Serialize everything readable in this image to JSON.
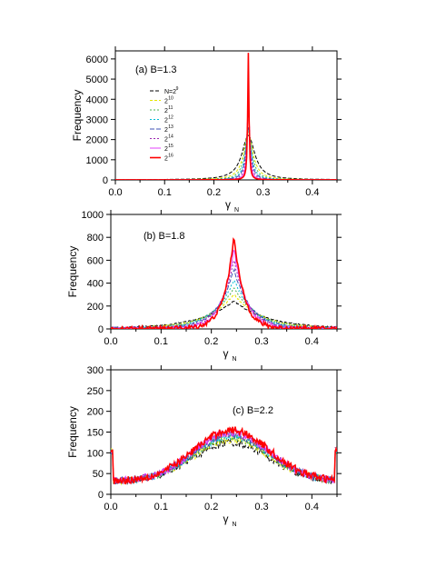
{
  "chart_data": [
    {
      "type": "line",
      "panel_label": "(a) B=1.3",
      "xlabel": "γ",
      "xlabel_sub": "N",
      "ylabel": "Frequency",
      "xlim": [
        0.0,
        0.45
      ],
      "ylim": [
        0,
        6400
      ],
      "xticks": [
        "0.0",
        "0.1",
        "0.2",
        "0.3",
        "0.4"
      ],
      "yticks": [
        "0",
        "1000",
        "2000",
        "3000",
        "4000",
        "5000",
        "6000"
      ],
      "legend_position": "top-left",
      "series": [
        {
          "name": "N=2^9",
          "color": "#000000",
          "dash": "4,2",
          "peak_x": 0.27,
          "peak_y": 2200,
          "width": 0.025
        },
        {
          "name": "2^10",
          "color": "#e6e600",
          "dash": "3,2",
          "peak_x": 0.27,
          "peak_y": 2300,
          "width": 0.018
        },
        {
          "name": "2^11",
          "color": "#4caf50",
          "dash": "2,2",
          "peak_x": 0.27,
          "peak_y": 2400,
          "width": 0.014
        },
        {
          "name": "2^12",
          "color": "#00bcd4",
          "dash": "2,2",
          "peak_x": 0.27,
          "peak_y": 2500,
          "width": 0.011
        },
        {
          "name": "2^13",
          "color": "#3f51b5",
          "dash": "5,2",
          "peak_x": 0.27,
          "peak_y": 2600,
          "width": 0.009
        },
        {
          "name": "2^14",
          "color": "#9c27b0",
          "dash": "2,2",
          "peak_x": 0.27,
          "peak_y": 3500,
          "width": 0.006
        },
        {
          "name": "2^15",
          "color": "#e040fb",
          "dash": "",
          "peak_x": 0.27,
          "peak_y": 4500,
          "width": 0.004
        },
        {
          "name": "2^16",
          "color": "#ff0000",
          "dash": "",
          "peak_x": 0.27,
          "peak_y": 6300,
          "width": 0.0025
        }
      ]
    },
    {
      "type": "line",
      "panel_label": "(b) B=1.8",
      "xlabel": "γ",
      "xlabel_sub": "N",
      "ylabel": "Frequency",
      "xlim": [
        0.0,
        0.45
      ],
      "ylim": [
        0,
        1000
      ],
      "xticks": [
        "0.0",
        "0.1",
        "0.2",
        "0.3",
        "0.4"
      ],
      "yticks": [
        "0",
        "200",
        "400",
        "600",
        "800",
        "1000"
      ],
      "series": [
        {
          "name": "2^9",
          "color": "#000000",
          "dash": "4,2",
          "peak_x": 0.245,
          "peak_y": 240,
          "width": 0.09
        },
        {
          "name": "2^10",
          "color": "#e6e600",
          "dash": "3,2",
          "peak_x": 0.245,
          "peak_y": 300,
          "width": 0.07
        },
        {
          "name": "2^11",
          "color": "#4caf50",
          "dash": "2,2",
          "peak_x": 0.245,
          "peak_y": 360,
          "width": 0.06
        },
        {
          "name": "2^12",
          "color": "#00bcd4",
          "dash": "2,2",
          "peak_x": 0.245,
          "peak_y": 430,
          "width": 0.05
        },
        {
          "name": "2^13",
          "color": "#3f51b5",
          "dash": "5,2",
          "peak_x": 0.245,
          "peak_y": 520,
          "width": 0.042
        },
        {
          "name": "2^14",
          "color": "#9c27b0",
          "dash": "2,2",
          "peak_x": 0.245,
          "peak_y": 600,
          "width": 0.036
        },
        {
          "name": "2^15",
          "color": "#e040fb",
          "dash": "",
          "peak_x": 0.245,
          "peak_y": 700,
          "width": 0.03
        },
        {
          "name": "2^16",
          "color": "#ff0000",
          "dash": "",
          "peak_x": 0.245,
          "peak_y": 820,
          "width": 0.025
        }
      ]
    },
    {
      "type": "line",
      "panel_label": "(c) B=2.2",
      "xlabel": "γ",
      "xlabel_sub": "N",
      "ylabel": "Frequency",
      "xlim": [
        0.0,
        0.45
      ],
      "ylim": [
        0,
        300
      ],
      "xticks": [
        "0.0",
        "0.1",
        "0.2",
        "0.3",
        "0.4"
      ],
      "yticks": [
        "0",
        "50",
        "100",
        "150",
        "200",
        "250",
        "300"
      ],
      "series": [
        {
          "name": "2^9",
          "color": "#000000",
          "dash": "4,2",
          "peak_x": 0.24,
          "peak_y": 125,
          "width": 0.12
        },
        {
          "name": "2^10",
          "color": "#e6e600",
          "dash": "3,2",
          "peak_x": 0.24,
          "peak_y": 132,
          "width": 0.12
        },
        {
          "name": "2^11",
          "color": "#4caf50",
          "dash": "2,2",
          "peak_x": 0.24,
          "peak_y": 136,
          "width": 0.12
        },
        {
          "name": "2^12",
          "color": "#00bcd4",
          "dash": "2,2",
          "peak_x": 0.24,
          "peak_y": 140,
          "width": 0.12
        },
        {
          "name": "2^13",
          "color": "#3f51b5",
          "dash": "5,2",
          "peak_x": 0.24,
          "peak_y": 143,
          "width": 0.12
        },
        {
          "name": "2^14",
          "color": "#9c27b0",
          "dash": "2,2",
          "peak_x": 0.24,
          "peak_y": 146,
          "width": 0.12
        },
        {
          "name": "2^15",
          "color": "#e040fb",
          "dash": "",
          "peak_x": 0.24,
          "peak_y": 150,
          "width": 0.12
        },
        {
          "name": "2^16",
          "color": "#ff0000",
          "dash": "",
          "peak_x": 0.24,
          "peak_y": 155,
          "width": 0.12
        }
      ]
    }
  ]
}
